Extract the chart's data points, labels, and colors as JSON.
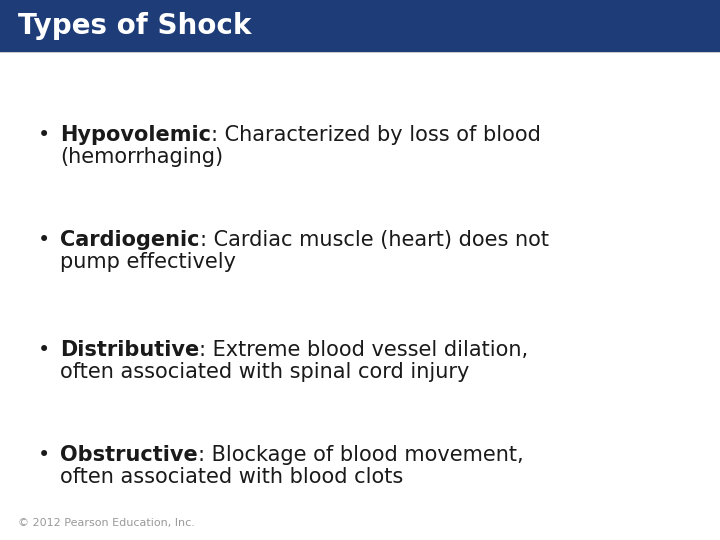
{
  "title": "Types of Shock",
  "title_bg_color": "#1e3d78",
  "title_text_color": "#ffffff",
  "title_fontsize": 20,
  "bg_color": "#f0f0f0",
  "content_bg_color": "#ffffff",
  "bullet_color": "#1a1a1a",
  "bullet_points": [
    {
      "bold": "Hypovolemic",
      "rest": ": Characterized by loss of blood\n(hemorrhaging)"
    },
    {
      "bold": "Cardiogenic",
      "rest": ": Cardiac muscle (heart) does not\npump effectively"
    },
    {
      "bold": "Distributive",
      "rest": ": Extreme blood vessel dilation,\noften associated with spinal cord injury"
    },
    {
      "bold": "Obstructive",
      "rest": ": Blockage of blood movement,\noften associated with blood clots"
    }
  ],
  "footer": "© 2012 Pearson Education, Inc.",
  "footer_fontsize": 8,
  "footer_color": "#999999",
  "bullet_fontsize": 15,
  "bullet_symbol": "•"
}
